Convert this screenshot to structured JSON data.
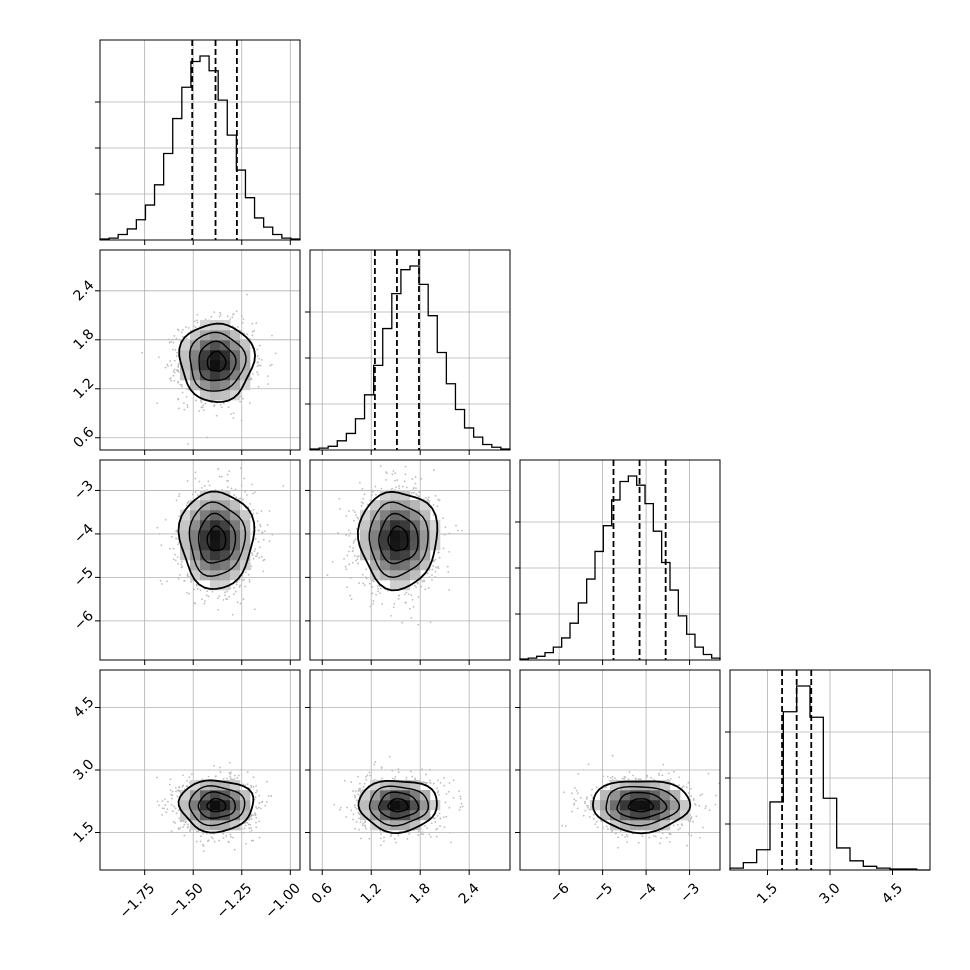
{
  "chart_data": {
    "type": "corner",
    "title": "",
    "grid": true,
    "parameters": [
      {
        "label": "",
        "range": [
          -1.98,
          -0.95
        ],
        "ticks": [
          -1.75,
          -1.5,
          -1.25,
          -1.0
        ],
        "tick_labels": [
          "−1.75",
          "−1.50",
          "−1.25",
          "−1.00"
        ],
        "quantiles": [
          -1.505,
          -1.385,
          -1.275
        ]
      },
      {
        "label": "",
        "range": [
          0.45,
          2.9
        ],
        "ticks": [
          0.6,
          1.2,
          1.8,
          2.4
        ],
        "tick_labels": [
          "0.6",
          "1.2",
          "1.8",
          "2.4"
        ],
        "quantiles": [
          1.245,
          1.515,
          1.785
        ]
      },
      {
        "label": "",
        "range": [
          -6.9,
          -2.3
        ],
        "ticks": [
          -6,
          -5,
          -4,
          -3
        ],
        "tick_labels": [
          "−6",
          "−5",
          "−4",
          "−3"
        ],
        "quantiles": [
          -4.75,
          -4.15,
          -3.55
        ]
      },
      {
        "label": "",
        "range": [
          0.6,
          5.4
        ],
        "ticks": [
          1.5,
          3.0,
          4.5
        ],
        "tick_labels": [
          "1.5",
          "3.0",
          "4.5"
        ],
        "quantiles": [
          1.85,
          2.2,
          2.55
        ]
      }
    ],
    "means": [
      -1.38,
      1.53,
      -4.12,
      2.15
    ],
    "sigmas": [
      0.095,
      0.24,
      0.56,
      0.31
    ],
    "histograms": [
      {
        "parameter": 0,
        "bin_edges_range": [
          -1.98,
          -0.95
        ],
        "counts": [
          0.5,
          1,
          3,
          6,
          11,
          19,
          30,
          47,
          66,
          83,
          97,
          100,
          92,
          76,
          57,
          38,
          23,
          12,
          7,
          3,
          1,
          0.5
        ]
      },
      {
        "parameter": 1,
        "bin_edges_range": [
          0.45,
          2.9
        ],
        "counts": [
          0.5,
          1,
          2,
          5,
          9,
          17,
          30,
          46,
          66,
          85,
          98,
          100,
          90,
          73,
          53,
          36,
          22,
          12,
          7,
          3,
          1.5,
          0.5
        ]
      },
      {
        "parameter": 2,
        "bin_edges_range": [
          -6.9,
          -2.3
        ],
        "counts": [
          0.5,
          1,
          2,
          4,
          7,
          12,
          20,
          31,
          44,
          59,
          73,
          87,
          97,
          100,
          95,
          85,
          70,
          53,
          38,
          24,
          14,
          7,
          3,
          1
        ]
      },
      {
        "parameter": 3,
        "bin_edges_range": [
          0.6,
          5.4
        ],
        "counts": [
          1,
          4,
          11,
          37,
          86,
          100,
          83,
          39,
          12,
          5,
          2,
          1,
          0.5,
          0.5,
          0
        ]
      }
    ],
    "contour_levels": [
      0.5,
      1.0,
      1.5,
      2.0
    ],
    "colors": {
      "axes": "#000000",
      "grid": "#b0b0b0",
      "points": "#bdbdbd",
      "density_max": "#000000"
    }
  }
}
